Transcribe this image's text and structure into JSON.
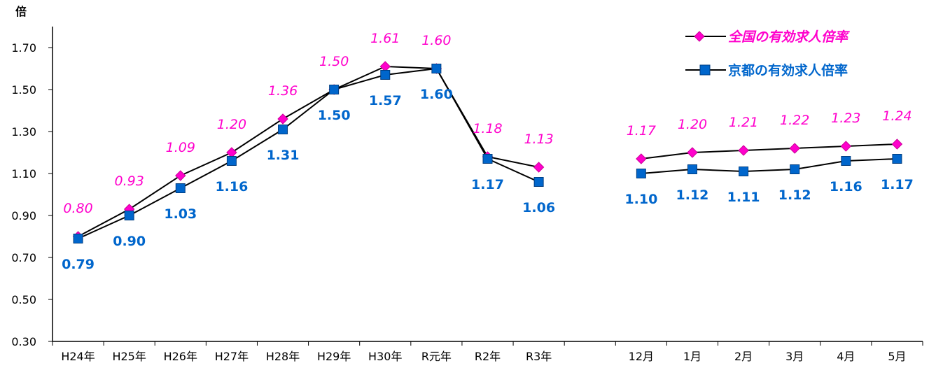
{
  "chart_data": {
    "type": "line",
    "ylabel": "倍",
    "ylim": [
      0.3,
      1.8
    ],
    "yticks": [
      "0.30",
      "0.50",
      "0.70",
      "0.90",
      "1.10",
      "1.30",
      "1.50",
      "1.70"
    ],
    "ytick_values": [
      0.3,
      0.5,
      0.7,
      0.9,
      1.1,
      1.3,
      1.5,
      1.7
    ],
    "categories": [
      "H24年",
      "H25年",
      "H26年",
      "H27年",
      "H28年",
      "H29年",
      "H30年",
      "R元年",
      "R2年",
      "R3年",
      "",
      "12月",
      "1月",
      "2月",
      "3月",
      "4月",
      "5月"
    ],
    "segments": [
      [
        0,
        9
      ],
      [
        11,
        16
      ]
    ],
    "legend_position": "top-right",
    "grid": false,
    "series": [
      {
        "name": "全国の有効求人倍率",
        "color": "#ff00cc",
        "marker": "diamond",
        "values": [
          0.8,
          0.93,
          1.09,
          1.2,
          1.36,
          1.5,
          1.61,
          1.6,
          1.18,
          1.13,
          null,
          1.17,
          1.2,
          1.21,
          1.22,
          1.23,
          1.24
        ],
        "labels": [
          "0.80",
          "0.93",
          "1.09",
          "1.20",
          "1.36",
          "1.50",
          "1.61",
          "1.60",
          "1.18",
          "1.13",
          "",
          "1.17",
          "1.20",
          "1.21",
          "1.22",
          "1.23",
          "1.24"
        ]
      },
      {
        "name": "京都の有効求人倍率",
        "color": "#0066cc",
        "marker": "square",
        "values": [
          0.79,
          0.9,
          1.03,
          1.16,
          1.31,
          1.5,
          1.57,
          1.6,
          1.17,
          1.06,
          null,
          1.1,
          1.12,
          1.11,
          1.12,
          1.16,
          1.17
        ],
        "labels": [
          "0.79",
          "0.90",
          "1.03",
          "1.16",
          "1.31",
          "1.50",
          "1.57",
          "1.60",
          "1.17",
          "1.06",
          "",
          "1.10",
          "1.12",
          "1.11",
          "1.12",
          "1.16",
          "1.17"
        ]
      }
    ]
  }
}
